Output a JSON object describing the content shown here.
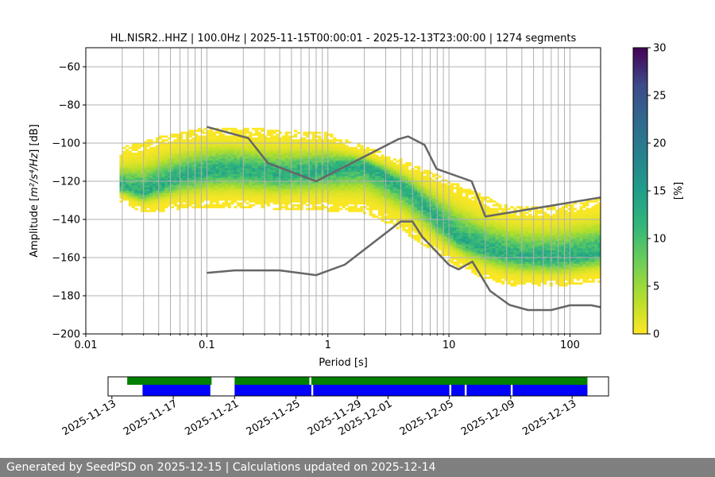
{
  "chart_data": {
    "type": "heatmap",
    "title": "HL.NISR2..HHZ | 100.0Hz | 2025-11-15T00:00:01 - 2025-12-13T23:00:00 | 1274 segments",
    "xlabel": "Period [s]",
    "ylabel_main": "Amplitude [",
    "ylabel_math": "m²/s⁴/Hz",
    "ylabel_tail": "] [dB]",
    "x_scale": "log",
    "xlim": [
      0.01,
      179
    ],
    "ylim": [
      -200,
      -50
    ],
    "x_ticks": [
      {
        "value": 0.01,
        "label": "0.01"
      },
      {
        "value": 0.1,
        "label": "0.1"
      },
      {
        "value": 1,
        "label": "1"
      },
      {
        "value": 10,
        "label": "10"
      },
      {
        "value": 100,
        "label": "100"
      }
    ],
    "y_ticks": [
      {
        "value": -60,
        "label": "−60"
      },
      {
        "value": -80,
        "label": "−80"
      },
      {
        "value": -100,
        "label": "−100"
      },
      {
        "value": -120,
        "label": "−120"
      },
      {
        "value": -140,
        "label": "−140"
      },
      {
        "value": -160,
        "label": "−160"
      },
      {
        "value": -180,
        "label": "−180"
      },
      {
        "value": -200,
        "label": "−200"
      }
    ],
    "grid": true,
    "colormap": "viridis_r",
    "colorbar": {
      "label": "[%]",
      "range": [
        0,
        30
      ],
      "ticks": [
        {
          "value": 0,
          "label": "0"
        },
        {
          "value": 5,
          "label": "5"
        },
        {
          "value": 10,
          "label": "10"
        },
        {
          "value": 15,
          "label": "15"
        },
        {
          "value": 20,
          "label": "20"
        },
        {
          "value": 25,
          "label": "25"
        },
        {
          "value": 30,
          "label": "30"
        }
      ]
    },
    "psd_band": {
      "period_range": [
        0.019,
        179
      ],
      "mode": [
        [
          0.019,
          -123
        ],
        [
          0.03,
          -126
        ],
        [
          0.06,
          -118
        ],
        [
          0.15,
          -114
        ],
        [
          0.4,
          -117
        ],
        [
          1,
          -114
        ],
        [
          2,
          -112
        ],
        [
          4,
          -122
        ],
        [
          6,
          -132
        ],
        [
          8,
          -140
        ],
        [
          12,
          -150
        ],
        [
          20,
          -156
        ],
        [
          40,
          -160
        ],
        [
          80,
          -161
        ],
        [
          179,
          -158
        ]
      ],
      "upper": [
        [
          0.019,
          -104
        ],
        [
          0.04,
          -98
        ],
        [
          0.1,
          -93
        ],
        [
          0.3,
          -94
        ],
        [
          1,
          -96
        ],
        [
          2,
          -103
        ],
        [
          4,
          -110
        ],
        [
          8,
          -118
        ],
        [
          15,
          -126
        ],
        [
          30,
          -134
        ],
        [
          60,
          -135
        ],
        [
          179,
          -130
        ]
      ],
      "lower": [
        [
          0.019,
          -130
        ],
        [
          0.03,
          -136
        ],
        [
          0.1,
          -133
        ],
        [
          0.3,
          -134
        ],
        [
          1,
          -135
        ],
        [
          2,
          -136
        ],
        [
          4,
          -145
        ],
        [
          8,
          -158
        ],
        [
          15,
          -168
        ],
        [
          30,
          -174
        ],
        [
          80,
          -175
        ],
        [
          179,
          -172
        ]
      ]
    },
    "noise_models": [
      {
        "points": [
          [
            0.1,
            -91.5
          ],
          [
            0.22,
            -97.4
          ],
          [
            0.32,
            -110.5
          ],
          [
            0.8,
            -120
          ],
          [
            3.8,
            -98
          ],
          [
            4.6,
            -96.5
          ],
          [
            6.3,
            -101
          ],
          [
            7.9,
            -113.5
          ],
          [
            15.4,
            -120
          ],
          [
            20,
            -138.5
          ],
          [
            179,
            -128.5
          ]
        ]
      },
      {
        "points": [
          [
            0.1,
            -168
          ],
          [
            0.17,
            -166.7
          ],
          [
            0.4,
            -166.7
          ],
          [
            0.8,
            -169.2
          ],
          [
            1.38,
            -163.7
          ],
          [
            4,
            -141.1
          ],
          [
            5,
            -141.1
          ],
          [
            6,
            -149
          ],
          [
            10,
            -163.8
          ],
          [
            12,
            -166.2
          ],
          [
            15.6,
            -162.1
          ],
          [
            21.9,
            -177.5
          ],
          [
            31.6,
            -184.8
          ],
          [
            45,
            -187.5
          ],
          [
            70,
            -187.5
          ],
          [
            100,
            -185
          ],
          [
            150,
            -185
          ],
          [
            179,
            -186
          ]
        ]
      }
    ],
    "availability": {
      "date_ticks": [
        {
          "date": "2025-11-13",
          "label": "2025-11-13"
        },
        {
          "date": "2025-11-17",
          "label": "2025-11-17"
        },
        {
          "date": "2025-11-21",
          "label": "2025-11-21"
        },
        {
          "date": "2025-11-25",
          "label": "2025-11-25"
        },
        {
          "date": "2025-11-29",
          "label": "2025-11-29"
        },
        {
          "date": "2025-12-01",
          "label": "2025-12-01"
        },
        {
          "date": "2025-12-05",
          "label": "2025-12-05"
        },
        {
          "date": "2025-12-09",
          "label": "2025-12-09"
        },
        {
          "date": "2025-12-13",
          "label": "2025-12-13"
        }
      ],
      "range": [
        "2025-11-12T18:00",
        "2025-12-15T09:00"
      ],
      "green_segments": [
        [
          "2025-11-14T00:00",
          "2025-11-19T12:00"
        ],
        [
          "2025-11-21T00:00",
          "2025-11-25T21:00"
        ],
        [
          "2025-11-26T00:00",
          "2025-12-14T00:00"
        ]
      ],
      "blue_segments": [
        [
          "2025-11-15T00:00",
          "2025-11-19T10:00"
        ],
        [
          "2025-11-21T00:00",
          "2025-11-26T00:00"
        ],
        [
          "2025-11-26T03:00",
          "2025-12-05T00:00"
        ],
        [
          "2025-12-05T03:00",
          "2025-12-06T00:00"
        ],
        [
          "2025-12-06T03:00",
          "2025-12-09T00:00"
        ],
        [
          "2025-12-09T03:00",
          "2025-12-14T00:00"
        ]
      ],
      "green_color": "#008000",
      "blue_color": "#0000ff"
    }
  },
  "footer": {
    "text": "Generated by SeedPSD on 2025-12-15 | Calculations updated on 2025-12-14"
  },
  "colors": {
    "grid": "#b0b0b0",
    "noise_model": "#666666",
    "footer_bg": "#7f7f7f"
  }
}
